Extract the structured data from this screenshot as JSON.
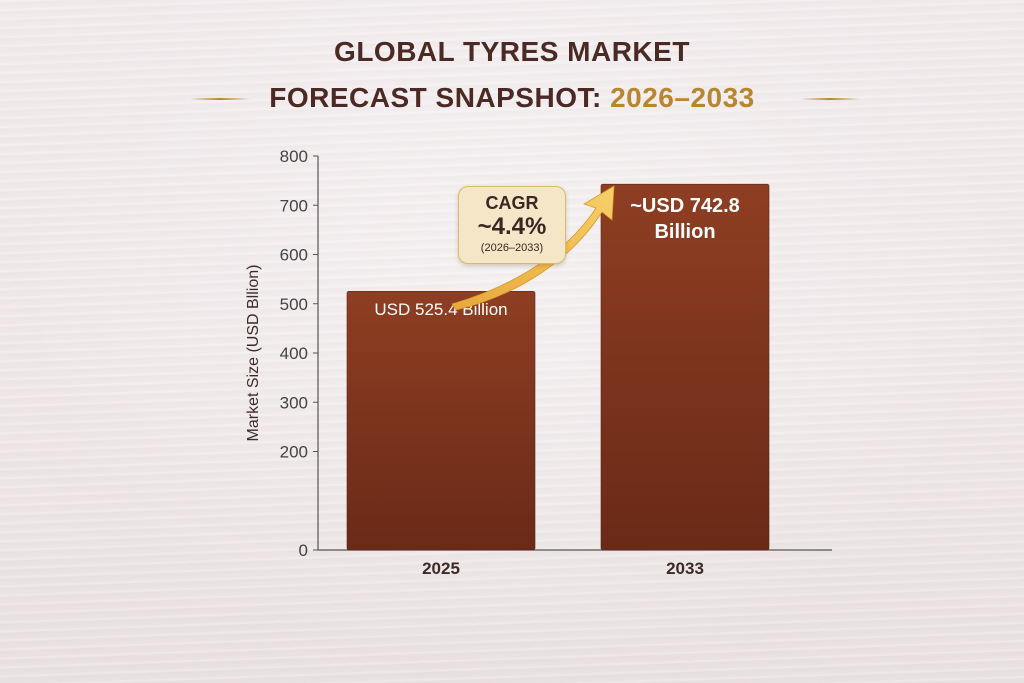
{
  "title": {
    "line1": "GLOBAL TYRES MARKET",
    "line2_main": "FORECAST SNAPSHOT:",
    "line2_accent": "2026–2033"
  },
  "colors": {
    "title": "#4b2a26",
    "accent": "#b8862f",
    "bar_top": "#8e3e22",
    "bar_bottom": "#6a2a17",
    "arrow": "#f2bd4f"
  },
  "cagr": {
    "label": "CAGR",
    "value": "~4.4%",
    "period": "(2026–2033)"
  },
  "chart_data": {
    "type": "bar",
    "categories": [
      "2025",
      "2033"
    ],
    "values": [
      525.4,
      742.8
    ],
    "data_labels": [
      [
        "USD 525.4 Billion"
      ],
      [
        "~USD 742.8",
        "Billion"
      ]
    ],
    "ylabel": "Market Size (USD Bllion)",
    "xlabel": "",
    "ylim": [
      0,
      800
    ],
    "yticks": [
      0,
      200,
      300,
      400,
      500,
      600,
      700,
      800
    ],
    "grid": false
  }
}
